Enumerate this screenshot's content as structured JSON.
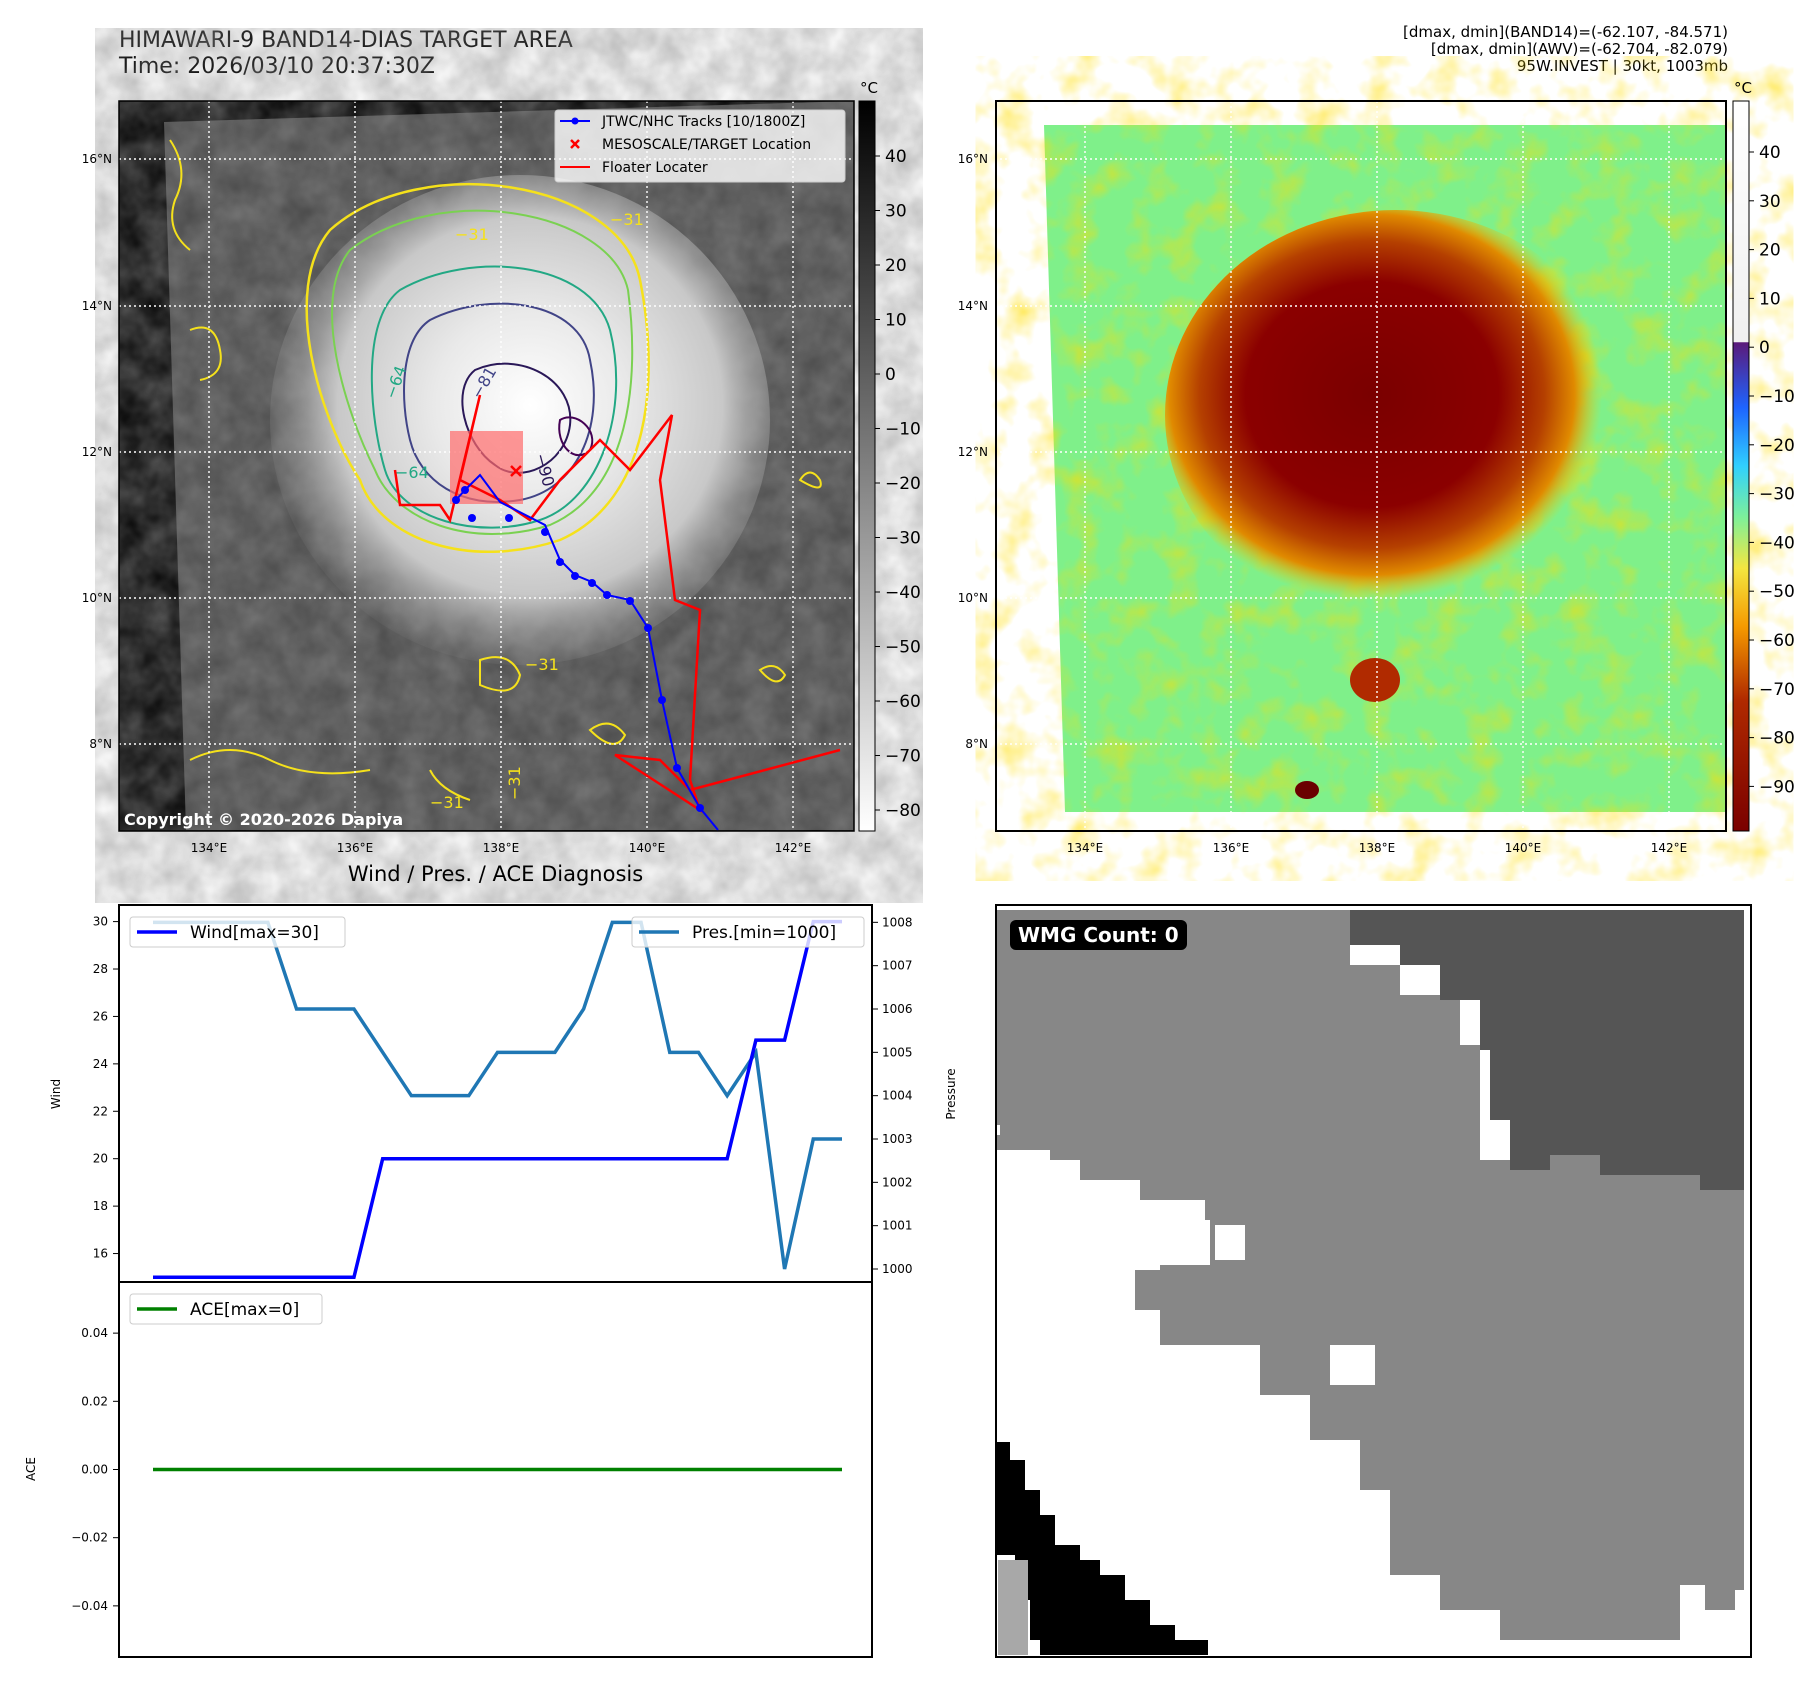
{
  "header": {
    "title_line1": "HIMAWARI-9 BAND14-DIAS TARGET AREA",
    "title_line2": "Time: 2026/03/10 20:37:30Z",
    "info_line1": "[dmax, dmin](BAND14)=(-62.107, -84.571)",
    "info_line2": "[dmax, dmin](AWV)=(-62.704, -82.079)",
    "info_line3": "95W.INVEST | 30kt, 1003mb"
  },
  "ir_panel": {
    "copyright": "Copyright © 2020-2026 Dapiya",
    "colorbar_unit": "°C",
    "colorbar_ticks": [
      "40",
      "30",
      "20",
      "10",
      "0",
      "−10",
      "−20",
      "−30",
      "−40",
      "−50",
      "−60",
      "−70",
      "−80"
    ],
    "lat_labels": [
      "16°N",
      "14°N",
      "12°N",
      "10°N",
      "8°N"
    ],
    "lon_labels": [
      "134°E",
      "136°E",
      "138°E",
      "140°E",
      "142°E"
    ],
    "contour_labels": [
      "−31",
      "−64",
      "−81",
      "−90",
      "−31",
      "−31",
      "−31",
      "−31",
      "−64"
    ],
    "legend": [
      {
        "label": "JTWC/NHC Tracks [10/1800Z]",
        "color": "#0000ff"
      },
      {
        "label": "MESOSCALE/TARGET Location",
        "color": "#ff0000"
      },
      {
        "label": "Floater Locater",
        "color": "#ff0000"
      }
    ]
  },
  "awv_panel": {
    "colorbar_unit": "°C",
    "colorbar_ticks": [
      "40",
      "30",
      "20",
      "10",
      "0",
      "−10",
      "−20",
      "−30",
      "−40",
      "−50",
      "−60",
      "−70",
      "−80",
      "−90"
    ],
    "lat_labels": [
      "16°N",
      "14°N",
      "12°N",
      "10°N",
      "8°N"
    ],
    "lon_labels": [
      "134°E",
      "136°E",
      "138°E",
      "140°E",
      "142°E"
    ]
  },
  "wmg_panel": {
    "label": "WMG Count: 0"
  },
  "colors": {
    "wind": "#0000ff",
    "pressure": "#1f77b4",
    "ace": "#008000",
    "track": "#0000ff",
    "floater": "#ff0000"
  },
  "chart_data": [
    {
      "type": "line",
      "title": "Wind / Pres. / ACE Diagnosis",
      "xlabel": "",
      "ylabel": "Wind",
      "ylabel_right": "Pressure",
      "ylim": [
        14.8,
        30.7
      ],
      "ylim_right": [
        999.7,
        1008.4
      ],
      "yticks": [
        16,
        18,
        20,
        22,
        24,
        26,
        28,
        30
      ],
      "yticks_right": [
        1000,
        1001,
        1002,
        1003,
        1004,
        1005,
        1006,
        1007,
        1008
      ],
      "x": [
        0,
        1,
        2,
        3,
        4,
        5,
        6,
        7,
        8,
        9,
        10,
        11,
        12,
        13,
        14,
        15,
        16,
        17,
        18,
        19,
        20,
        21,
        22,
        23,
        24
      ],
      "series": [
        {
          "name": "Wind[max=30]",
          "axis": "left",
          "values": [
            15,
            15,
            15,
            15,
            15,
            15,
            15,
            15,
            20,
            20,
            20,
            20,
            20,
            20,
            20,
            20,
            20,
            20,
            20,
            20,
            20,
            25,
            25,
            30,
            30
          ]
        },
        {
          "name": "Pres.[min=1000]",
          "axis": "right",
          "values": [
            1008,
            1008,
            1008,
            1008,
            1008,
            1006,
            1006,
            1006,
            1005,
            1004,
            1004,
            1004,
            1005,
            1005,
            1005,
            1006,
            1008,
            1008,
            1005,
            1005,
            1004,
            1005,
            1000,
            1003,
            1003
          ]
        }
      ],
      "legend_location": "top"
    },
    {
      "type": "line",
      "title": "",
      "ylabel": "ACE",
      "ylim": [
        -0.055,
        0.055
      ],
      "yticks": [
        0.04,
        0.02,
        0.0,
        -0.02,
        -0.04
      ],
      "ytick_labels": [
        "0.04",
        "0.02",
        "0.00",
        "−0.02",
        "−0.04"
      ],
      "x": [
        0,
        1,
        2,
        3,
        4,
        5,
        6,
        7,
        8,
        9,
        10,
        11,
        12,
        13,
        14,
        15,
        16,
        17,
        18,
        19,
        20,
        21,
        22,
        23,
        24
      ],
      "series": [
        {
          "name": "ACE[max=0]",
          "values": [
            0,
            0,
            0,
            0,
            0,
            0,
            0,
            0,
            0,
            0,
            0,
            0,
            0,
            0,
            0,
            0,
            0,
            0,
            0,
            0,
            0,
            0,
            0,
            0,
            0
          ]
        }
      ],
      "legend_location": "upper left"
    }
  ]
}
